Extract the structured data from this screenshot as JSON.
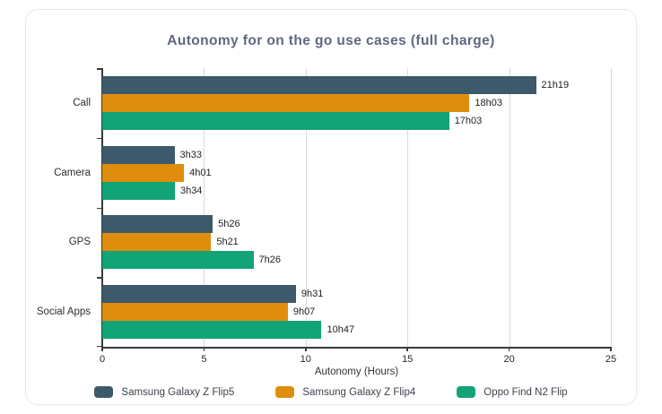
{
  "title": "Autonomy for on the go use cases (full charge)",
  "chart_data": {
    "type": "bar",
    "orientation": "horizontal",
    "title": "Autonomy for on the go use cases (full charge)",
    "categories": [
      "Call",
      "Camera",
      "GPS",
      "Social Apps"
    ],
    "series": [
      {
        "name": "Samsung Galaxy Z Flip5",
        "color": "#3d5a6c",
        "values": [
          21.32,
          3.55,
          5.43,
          9.52
        ],
        "labels": [
          "21h19",
          "3h33",
          "5h26",
          "9h31"
        ]
      },
      {
        "name": "Samsung Galaxy Z Flip4",
        "color": "#df8d0d",
        "values": [
          18.05,
          4.02,
          5.35,
          9.12
        ],
        "labels": [
          "18h03",
          "4h01",
          "5h21",
          "9h07"
        ]
      },
      {
        "name": "Oppo Find N2 Flip",
        "color": "#12a377",
        "values": [
          17.05,
          3.57,
          7.43,
          10.78
        ],
        "labels": [
          "17h03",
          "3h34",
          "7h26",
          "10h47"
        ]
      }
    ],
    "xlabel": "Autonomy (Hours)",
    "xlim": [
      0,
      25
    ],
    "xticks": [
      0,
      5,
      10,
      15,
      20,
      25
    ],
    "gridlines_at": [
      5,
      10,
      15,
      20,
      25
    ],
    "grid": "vertical-only",
    "legend_position": "bottom",
    "colors": {
      "axis": "#3a3a3a",
      "gridline": "#d9d9d9",
      "title": "#5f6880",
      "tick_label": "#262626",
      "value_label": "#1f1f1f"
    }
  }
}
